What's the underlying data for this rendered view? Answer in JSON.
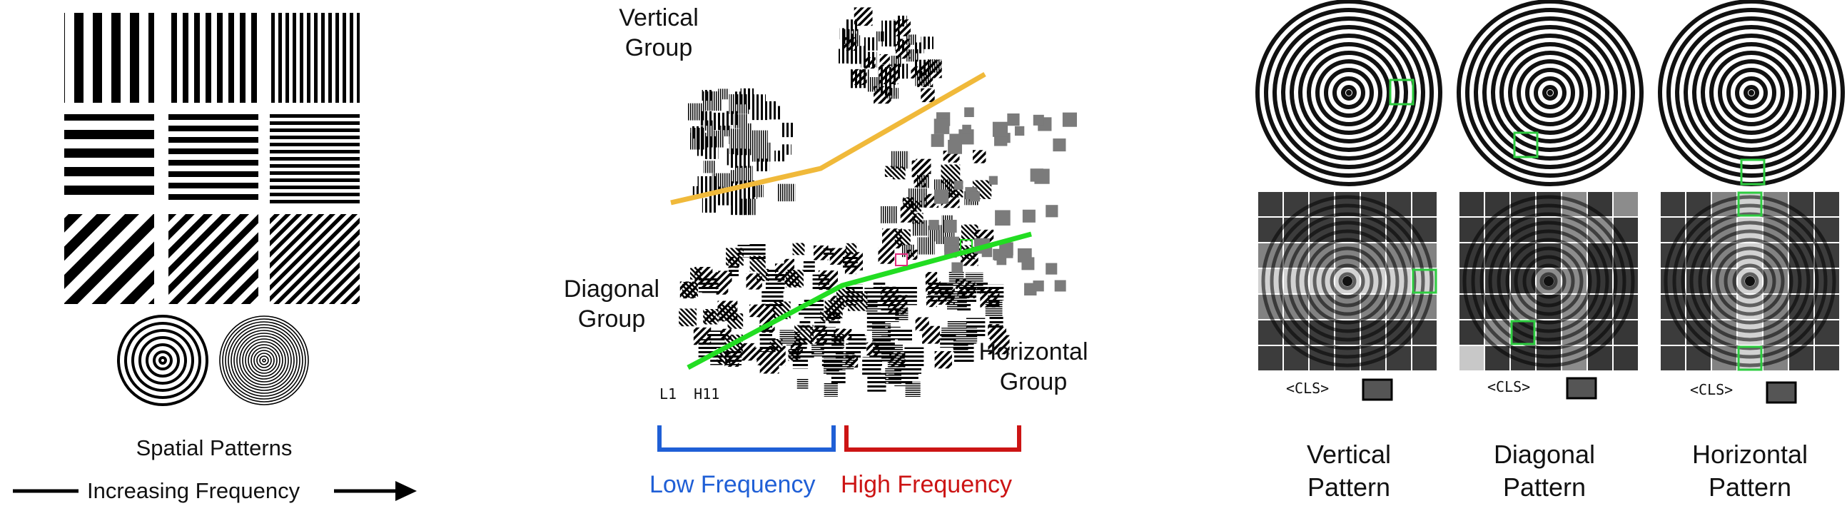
{
  "left": {
    "caption": "Spatial Patterns",
    "arrow_label": "Increasing Frequency"
  },
  "middle": {
    "labels": {
      "vertical": [
        "Vertical",
        "Group"
      ],
      "diagonal": [
        "Diagonal",
        "Group"
      ],
      "horizontal": [
        "Horizontal",
        "Group"
      ]
    },
    "corner_text": "L1  H11",
    "low_frequency": "Low Frequency",
    "high_frequency": "High Frequency",
    "colors": {
      "low": "#1f5fd6",
      "high": "#cc1414",
      "upper_line": "#f0b93a",
      "lower_line": "#22dd22"
    }
  },
  "right": {
    "panels": [
      {
        "cls": "<CLS>",
        "title": [
          "Vertical",
          "Pattern"
        ]
      },
      {
        "cls": "<CLS>",
        "title": [
          "Diagonal",
          "Pattern"
        ]
      },
      {
        "cls": "<CLS>",
        "title": [
          "Horizontal",
          "Pattern"
        ]
      }
    ],
    "highlight_color": "#2ecc40"
  }
}
